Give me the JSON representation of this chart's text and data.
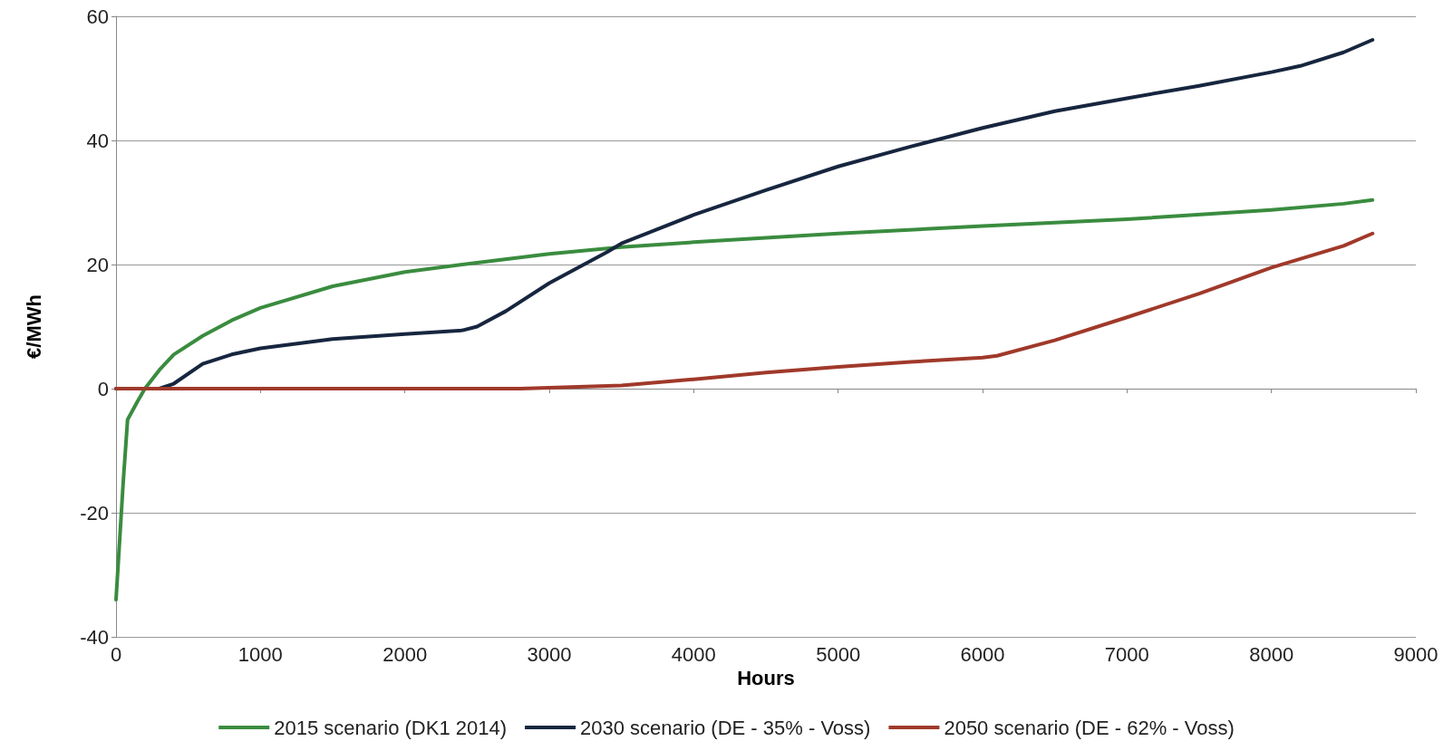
{
  "chart_data": {
    "type": "line",
    "xlabel": "Hours",
    "ylabel": "€/MWh",
    "xlim": [
      0,
      9000
    ],
    "xticks": [
      0,
      1000,
      2000,
      3000,
      4000,
      5000,
      6000,
      7000,
      8000,
      9000
    ],
    "ylim": [
      -40,
      60
    ],
    "yticks": [
      -40,
      -20,
      0,
      20,
      40,
      60
    ],
    "grid": "y",
    "legend": "bottom",
    "marker": "none",
    "line_style": "solid",
    "series": [
      {
        "name": "2015 scenario (DK1 2014)",
        "color": "#3a8c3f",
        "x": [
          0,
          50,
          80,
          150,
          200,
          300,
          400,
          600,
          800,
          1000,
          1500,
          2000,
          2500,
          3000,
          3500,
          4000,
          5000,
          6000,
          7000,
          8000,
          8500,
          8700
        ],
        "values": [
          -34,
          -15,
          -5,
          -2,
          0,
          3,
          5.5,
          8.5,
          11,
          13,
          16.5,
          18.8,
          20.3,
          21.7,
          22.8,
          23.6,
          25,
          26.2,
          27.3,
          28.8,
          29.8,
          30.4
        ]
      },
      {
        "name": "2030 scenario (DE - 35% - Voss)",
        "color": "#17263f",
        "x": [
          0,
          300,
          400,
          600,
          800,
          1000,
          1500,
          2000,
          2400,
          2500,
          2700,
          3000,
          3400,
          3500,
          4000,
          4500,
          5000,
          5500,
          6000,
          6500,
          7000,
          7500,
          8000,
          8200,
          8500,
          8700
        ],
        "values": [
          0,
          0,
          0.8,
          4,
          5.5,
          6.5,
          8,
          8.8,
          9.4,
          10,
          12.5,
          17,
          22,
          23.4,
          28,
          32,
          35.8,
          39,
          42,
          44.7,
          46.8,
          48.8,
          51,
          52,
          54.2,
          56.2
        ]
      },
      {
        "name": "2050 scenario (DE - 62% - Voss)",
        "color": "#a0392a",
        "x": [
          0,
          2800,
          3500,
          4000,
          4500,
          5000,
          5500,
          6000,
          6100,
          6500,
          7000,
          7500,
          8000,
          8500,
          8700
        ],
        "values": [
          0,
          0,
          0.5,
          1.5,
          2.6,
          3.5,
          4.3,
          5,
          5.3,
          7.8,
          11.5,
          15.3,
          19.5,
          23,
          25
        ]
      }
    ]
  }
}
